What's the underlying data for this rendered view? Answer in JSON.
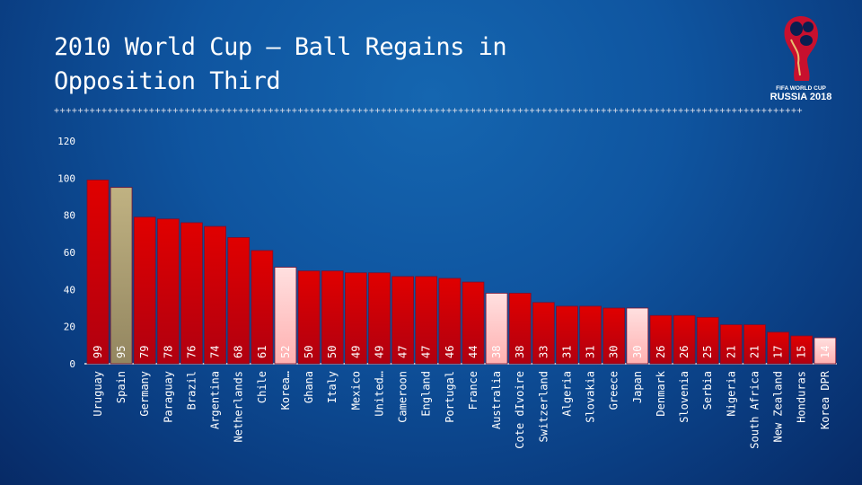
{
  "title_line1": "2010 World Cup – Ball Regains in",
  "title_line2": "Opposition Third",
  "logo": {
    "line1": "FIFA WORLD CUP",
    "line2": "RUSSIA 2018"
  },
  "colors": {
    "default": "#d10000",
    "spain": "#b5a77a",
    "highlight": "#ffd0d0"
  },
  "chart_data": {
    "type": "bar",
    "title": "2010 World Cup – Ball Regains in Opposition Third",
    "xlabel": "",
    "ylabel": "",
    "ylim": [
      0,
      120
    ],
    "yticks": [
      0,
      20,
      40,
      60,
      80,
      100,
      120
    ],
    "grid": false,
    "categories": [
      "Uruguay",
      "Spain",
      "Germany",
      "Paraguay",
      "Brazil",
      "Argentina",
      "Netherlands",
      "Chile",
      "Korea…",
      "Ghana",
      "Italy",
      "Mexico",
      "United…",
      "Cameroon",
      "England",
      "Portugal",
      "France",
      "Australia",
      "Cote dIvoire",
      "Switzerland",
      "Algeria",
      "Slovakia",
      "Greece",
      "Japan",
      "Denmark",
      "Slovenia",
      "Serbia",
      "Nigeria",
      "South Africa",
      "New Zealand",
      "Honduras",
      "Korea DPR"
    ],
    "values": [
      99,
      95,
      79,
      78,
      76,
      74,
      68,
      61,
      52,
      50,
      50,
      49,
      49,
      47,
      47,
      46,
      44,
      38,
      38,
      33,
      31,
      31,
      30,
      30,
      26,
      26,
      25,
      21,
      21,
      17,
      15,
      14
    ],
    "highlight": {
      "Spain": "spain",
      "Korea…": "highlight",
      "Australia": "highlight",
      "Japan": "highlight",
      "Korea DPR": "highlight"
    }
  }
}
